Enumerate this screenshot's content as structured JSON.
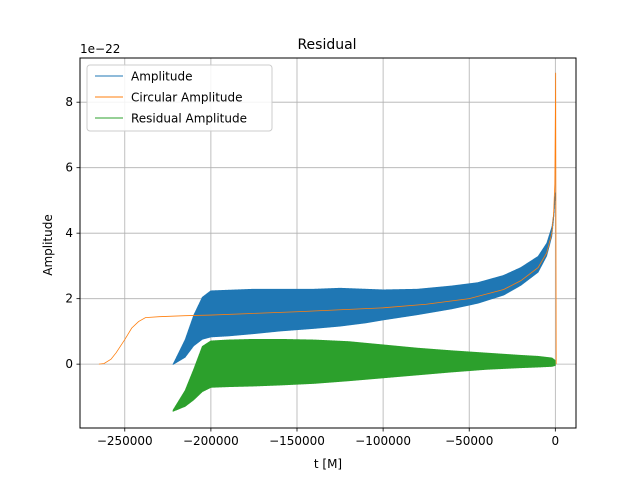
{
  "chart_data": {
    "type": "line",
    "title": "Residual",
    "xlabel": "t [M]",
    "ylabel": "Amplitude",
    "y_scale_label": "1e−22",
    "xlim": [
      -276000,
      12000
    ],
    "ylim": [
      -1.95,
      9.35
    ],
    "x_ticks": [
      -250000,
      -200000,
      -150000,
      -100000,
      -50000,
      0
    ],
    "x_tick_labels": [
      "−250000",
      "−200000",
      "−150000",
      "−100000",
      "−50000",
      "0"
    ],
    "y_ticks": [
      0,
      2,
      4,
      6,
      8
    ],
    "y_tick_labels": [
      "0",
      "2",
      "4",
      "6",
      "8"
    ],
    "grid": true,
    "legend_position": "top-left",
    "series": [
      {
        "name": "Amplitude",
        "color": "#1f77b4",
        "style": "oscillating band",
        "x": [
          -222000,
          -215000,
          -210000,
          -205000,
          -200000,
          -190000,
          -175000,
          -160000,
          -140000,
          -125000,
          -110000,
          -100000,
          -80000,
          -60000,
          -45000,
          -30000,
          -20000,
          -10000,
          -5000,
          -2000,
          -1000,
          0
        ],
        "y_low": [
          -0.02,
          0.2,
          0.55,
          0.75,
          0.82,
          0.85,
          0.92,
          1.0,
          1.08,
          1.15,
          1.25,
          1.34,
          1.5,
          1.68,
          1.85,
          2.1,
          2.4,
          2.8,
          3.3,
          3.9,
          4.4,
          5.1
        ],
        "y_high": [
          0.0,
          0.75,
          1.5,
          2.05,
          2.25,
          2.27,
          2.3,
          2.3,
          2.3,
          2.33,
          2.3,
          2.28,
          2.3,
          2.4,
          2.5,
          2.72,
          2.96,
          3.3,
          3.7,
          4.2,
          4.6,
          5.3
        ]
      },
      {
        "name": "Circular Amplitude",
        "color": "#ff7f0e",
        "style": "line",
        "x": [
          -265000,
          -262000,
          -258000,
          -255000,
          -250000,
          -246000,
          -242000,
          -238000,
          -230000,
          -215000,
          -200000,
          -150000,
          -100000,
          -75000,
          -50000,
          -30000,
          -20000,
          -10000,
          -5000,
          -2000,
          -1000,
          -300,
          0,
          200,
          400,
          500
        ],
        "y": [
          0.0,
          0.02,
          0.15,
          0.35,
          0.75,
          1.1,
          1.3,
          1.42,
          1.45,
          1.48,
          1.5,
          1.6,
          1.72,
          1.83,
          2.0,
          2.28,
          2.55,
          2.95,
          3.4,
          4.0,
          4.6,
          5.5,
          7.5,
          8.9,
          3.0,
          0.0
        ]
      },
      {
        "name": "Residual Amplitude",
        "color": "#2ca02c",
        "style": "oscillating band",
        "x": [
          -222000,
          -215000,
          -210000,
          -205000,
          -200000,
          -190000,
          -175000,
          -160000,
          -140000,
          -120000,
          -100000,
          -80000,
          -60000,
          -40000,
          -20000,
          -10000,
          -2000,
          0
        ],
        "y_low": [
          -1.45,
          -1.3,
          -1.1,
          -0.85,
          -0.72,
          -0.7,
          -0.68,
          -0.65,
          -0.6,
          -0.52,
          -0.43,
          -0.34,
          -0.25,
          -0.17,
          -0.12,
          -0.1,
          -0.08,
          -0.05
        ],
        "y_high": [
          -1.4,
          -0.8,
          -0.15,
          0.55,
          0.72,
          0.75,
          0.77,
          0.77,
          0.75,
          0.7,
          0.6,
          0.5,
          0.42,
          0.35,
          0.28,
          0.25,
          0.2,
          0.12
        ]
      }
    ]
  }
}
